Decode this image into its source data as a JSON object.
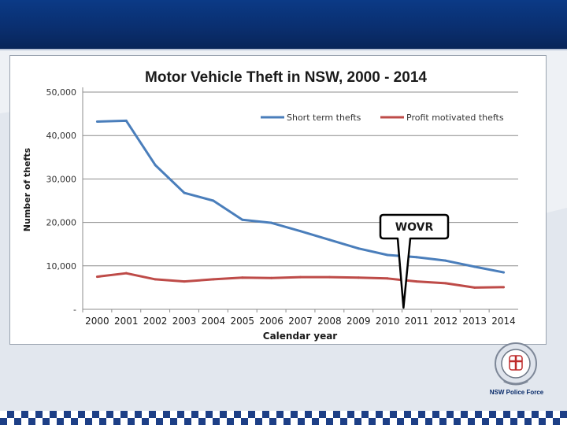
{
  "slide": {
    "logo_caption": "NSW Police Force"
  },
  "colors": {
    "header": "#0b3a86",
    "short_term": "#4a7ebb",
    "profit": "#be4b48",
    "callout_border": "#000000"
  },
  "chart_data": {
    "type": "line",
    "title": "Motor Vehicle Theft in NSW, 2000 - 2014",
    "xlabel": "Calendar year",
    "ylabel": "Number of thefts",
    "categories": [
      "2000",
      "2001",
      "2002",
      "2003",
      "2004",
      "2005",
      "2006",
      "2007",
      "2008",
      "2009",
      "2010",
      "2011",
      "2012",
      "2013",
      "2014"
    ],
    "ylim": [
      0,
      50000
    ],
    "yticks": [
      0,
      10000,
      20000,
      30000,
      40000,
      50000
    ],
    "ytick_labels": [
      "-",
      "10,000",
      "20,000",
      "30,000",
      "40,000",
      "50,000"
    ],
    "gridlines": "horizontal",
    "legend_position": "top-right",
    "series": [
      {
        "name": "Short term thefts",
        "color": "#4a7ebb",
        "values": [
          43200,
          43400,
          33200,
          26800,
          25000,
          20600,
          19900,
          18000,
          16000,
          14000,
          12500,
          12000,
          11200,
          9800,
          8500
        ]
      },
      {
        "name": "Profit motivated thefts",
        "color": "#be4b48",
        "values": [
          7500,
          8300,
          6900,
          6400,
          6900,
          7300,
          7200,
          7400,
          7400,
          7300,
          7100,
          6400,
          6000,
          5000,
          5100
        ]
      }
    ],
    "annotation": {
      "text": "WOVR",
      "points_to": "2010.5"
    }
  }
}
